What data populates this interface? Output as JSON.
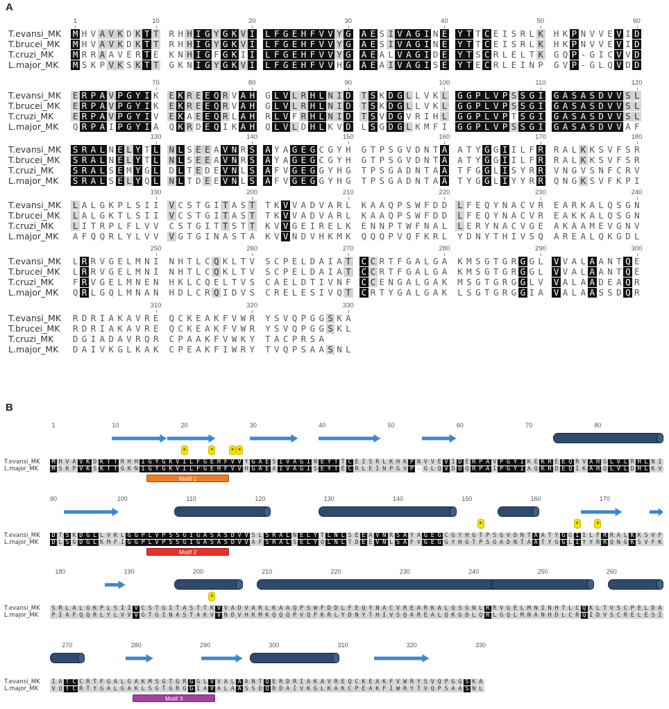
{
  "panel_a": {
    "letter": "A",
    "names": [
      "T.evansi_MK",
      "T.brucei_MK",
      "T.cruzi_MK",
      "L.major_MK"
    ],
    "seqs": [
      "MHVAVKDKTTRHHIGYGKVILFGEHFVVYGAESIVAGINEYTTCEISRLKHKPNVVEVIDERPAVPGYIKEKREEQRVAHGLVLRHLNIDTSKDGLLVKLGGPLVPSSGIGASASDVVSLSRALNELYTLNLSEEAVNRSAYAGEGCGYHGTPSGVDNTAATYGGIILFRRALKKSVFSRLALGKPLSIIVCSTGITASTTKVVADVARLKAAQPSWFDDLFEQYNACVREARKALQSGNLRRVGELMNINHTLCQKLTVSCPELDAIATCCRTFGALGAKMSGTGRGGLVVALAANTQERDRIAKAVREQCKEAKFVWRYSVQPGGSKA",
      "MHVAVKDKTTRHHIGYGKVILFGEHFVVYGAESIVAGINEYTTCEISRLKHKPNVVEVIDERPAVPGYIKEKREEQRVAHGLVLRHLNIDTSKDGLLVKLGGPLVPSSGIGASASDVVSLSRALNELYTLNLSEEAVNRSAYAGEGCGYHGTPSGVDNTAATYGGIILFRRALKKSVFSRLALGKTLSIIVCSTGITASTTKVVADVARLKAAQPSWFDDLFEQYNACVREAKKALQSGNLRRVGELMNINHTLCQKLTVSCPELDAIATCCRTFGALGAKMSGTGRGGLVVALAANTQERDRIAKAVREQCKEAKFVWRYSVQPGGSKL",
      "MRRAAVERTEKNHIGFGKIILFGEHFVVYGAEALVAGIDEYTSCRLELTKGQP-GICVVDERPAVPGYIVEKAEEQRLAHRLVFRHLNIDTSVDGVRIHLGGPLVPTSGIGASASDVVSLSRALSEMYGLDLTEDEVNLSAFVGEGGYHGTPSGADNTAATFGGLISYRRVNGVSNFCRVLITRPLFLVVCSTGITTSTTKVVGEIRELKENNPTWFNALLERYNACVGEAKAAMEVGNVFRVGELMNENHKLCQELTVSCAELDTIVNFCCENGALGAKMSGTGRGGLVVALAADEAQRDGIADAVRQRCPAAKFVWKYTACPRSA",
      "MSKPVKSKTTGKNIGYGKVILFGEHFVVHGAEAIVAGISEYTECRLEINPGVP-GLQVDDQRPAIPGYIAQKRDEQIKAHQLVLDHLKVDLSGDGLKMFIGGPLVPSSGIGASASDVVAFSRALSELYQLNLTDEEVNLSAFVGEGGYHGTPSGADNTAATYGGLIYYRRQNGKSVFKPIAFQQRLYLVVVGTGINASTAKVVNDVHKMKQQQPVQFKRLYDNYTHIVSQAREALQKGDLQRLGQLMNANHDLCRQIDVSCRELESIVQTCRTYGALGAKLSGTGRGGIAVALAASSDQRDAIVKGLKAKCPEAKFIWRYTVQPSAASNL"
    ],
    "row1_ticks": [
      "1",
      "10",
      "20",
      "30",
      "40",
      "50",
      "60"
    ],
    "row2_ticks": [
      "70",
      "80",
      "90",
      "100",
      "110",
      "120"
    ],
    "row3_ticks": [
      "130",
      "140",
      "150",
      "160",
      "170",
      "180"
    ],
    "row4_ticks": [
      "190",
      "200",
      "210",
      "220",
      "230",
      "240"
    ],
    "row5_ticks": [
      "250",
      "260",
      "270",
      "280",
      "290",
      "300"
    ],
    "row6_ticks": [
      "310",
      "320",
      "330"
    ]
  },
  "panel_b": {
    "letter": "B",
    "names": [
      "T.evansi_MK",
      "L.major_MK"
    ],
    "row1_ticks": [
      "1",
      "10",
      "20",
      "30",
      "40",
      "50",
      "60",
      "70",
      "80"
    ],
    "row2_ticks": [
      "90",
      "100",
      "110",
      "120",
      "130",
      "140",
      "150",
      "160",
      "170"
    ],
    "row3_ticks": [
      "180",
      "190",
      "200",
      "210",
      "220",
      "230",
      "240",
      "250",
      "260"
    ],
    "row4_ticks": [
      "270",
      "280",
      "290",
      "300",
      "310",
      "320",
      "330"
    ],
    "star_glyph": "*",
    "motifs": [
      "Motif 1",
      "Motif 2",
      "Motif 3"
    ],
    "colors": {
      "helix": "#2f4a6d",
      "strand": "#3d86d0",
      "star": "#f5e400",
      "motif1": "#f07a22",
      "motif2": "#e8312b",
      "motif3": "#a63fa3"
    }
  }
}
